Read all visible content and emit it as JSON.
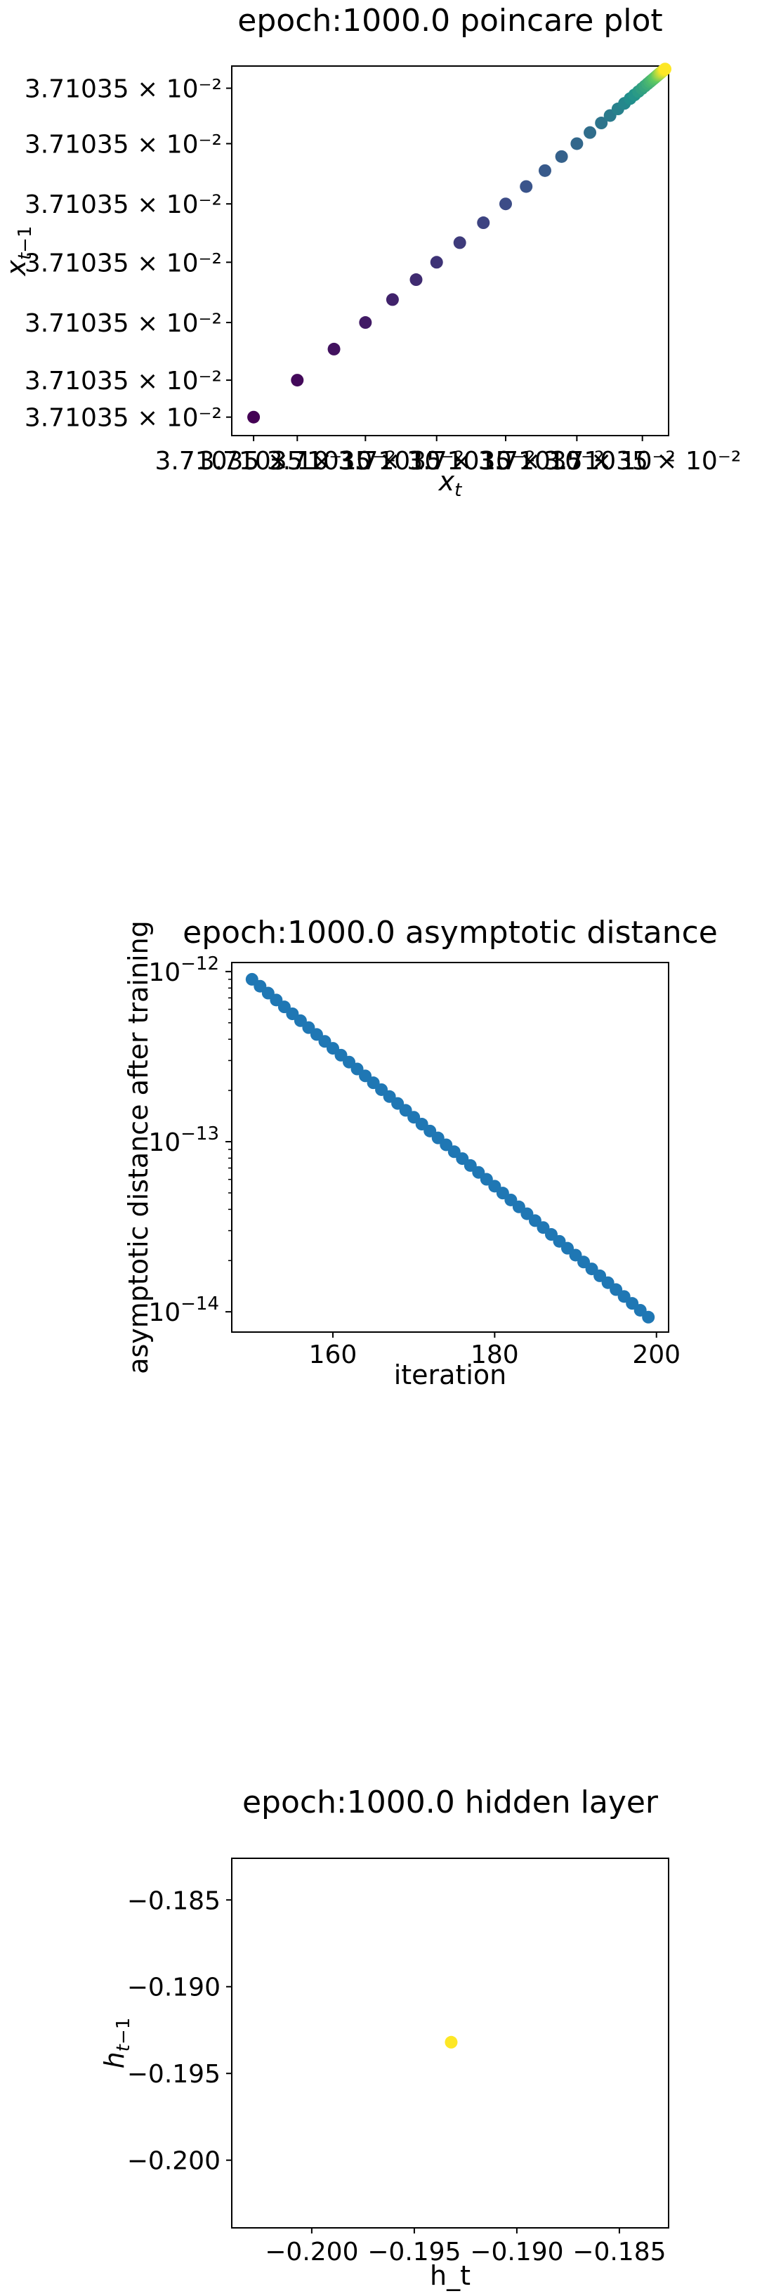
{
  "chart_data": [
    {
      "type": "scatter",
      "title": "epoch:1000.0 poincare plot",
      "xlabel": "x_t",
      "ylabel": "x_{t-1}",
      "xtick_labels": [
        "3.71035 × 10⁻²",
        "3.71035 × 10⁻²",
        "3.71035 × 10⁻²",
        "3.71035 × 10⁻²",
        "3.71035 × 10⁻²",
        "3.71035 × 10⁻²",
        "3.71035 × 10⁻²"
      ],
      "ytick_labels": [
        "3.71035 × 10⁻²",
        "3.71035 × 10⁻²",
        "3.71035 × 10⁻²",
        "3.71035 × 10⁻²",
        "3.71035 × 10⁻²",
        "3.71035 × 10⁻²",
        "3.71035 × 10⁻²"
      ],
      "xlim": [
        0,
        1
      ],
      "ylim": [
        0,
        1
      ],
      "grid": false,
      "colormap": "viridis",
      "points": [
        [
          0.05,
          0.05
        ],
        [
          0.15,
          0.15
        ],
        [
          0.234,
          0.234
        ],
        [
          0.306,
          0.306
        ],
        [
          0.368,
          0.368
        ],
        [
          0.422,
          0.422
        ],
        [
          0.469,
          0.469
        ],
        [
          0.522,
          0.522
        ],
        [
          0.576,
          0.576
        ],
        [
          0.627,
          0.627
        ],
        [
          0.674,
          0.674
        ],
        [
          0.717,
          0.717
        ],
        [
          0.755,
          0.755
        ],
        [
          0.79,
          0.79
        ],
        [
          0.82,
          0.82
        ],
        [
          0.846,
          0.846
        ],
        [
          0.866,
          0.866
        ],
        [
          0.884,
          0.884
        ],
        [
          0.899,
          0.899
        ],
        [
          0.912,
          0.912
        ],
        [
          0.922,
          0.922
        ],
        [
          0.931,
          0.931
        ],
        [
          0.939,
          0.939
        ],
        [
          0.946,
          0.946
        ],
        [
          0.952,
          0.952
        ],
        [
          0.957,
          0.957
        ],
        [
          0.961,
          0.961
        ],
        [
          0.965,
          0.965
        ],
        [
          0.968,
          0.968
        ],
        [
          0.971,
          0.971
        ],
        [
          0.974,
          0.974
        ],
        [
          0.976,
          0.976
        ],
        [
          0.978,
          0.978
        ],
        [
          0.98,
          0.98
        ],
        [
          0.982,
          0.982
        ],
        [
          0.984,
          0.984
        ],
        [
          0.986,
          0.986
        ],
        [
          0.988,
          0.988
        ],
        [
          0.99,
          0.99
        ],
        [
          0.992,
          0.992
        ]
      ]
    },
    {
      "type": "scatter",
      "title": "epoch:1000.0 asymptotic distance",
      "xlabel": "iteration",
      "ylabel": "asymptotic distance after training",
      "xscale": "linear",
      "yscale": "log",
      "xlim": [
        147.5,
        201.5
      ],
      "ylim": [
        7.6e-15,
        1.13e-12
      ],
      "xticks": [
        160,
        180,
        200
      ],
      "yticks": [
        1e-14,
        1e-13,
        1e-12
      ],
      "ytick_labels": [
        "10",
        "10",
        "10"
      ],
      "ytick_exponents": [
        "−14",
        "−13",
        "−12"
      ],
      "grid": false,
      "color": "#1f77b4",
      "x_start": 150,
      "x_end": 199,
      "y_start": 9e-13,
      "y_end": 9.3e-15
    },
    {
      "type": "scatter",
      "title": "epoch:1000.0 hidden layer",
      "xlabel": "h_t",
      "ylabel": "h_{t-1}",
      "xlim": [
        -0.2039,
        -0.1826
      ],
      "ylim": [
        -0.2039,
        -0.1826
      ],
      "xticks": [
        -0.2,
        -0.195,
        -0.19,
        -0.185
      ],
      "yticks": [
        -0.2,
        -0.195,
        -0.19,
        -0.185
      ],
      "xtick_labels": [
        "−0.200",
        "−0.195",
        "−0.190",
        "−0.185"
      ],
      "ytick_labels": [
        "−0.200",
        "−0.195",
        "−0.190",
        "−0.185"
      ],
      "grid": false,
      "points": [
        [
          -0.1932,
          -0.1932
        ]
      ],
      "point_color": "#fde725"
    }
  ]
}
